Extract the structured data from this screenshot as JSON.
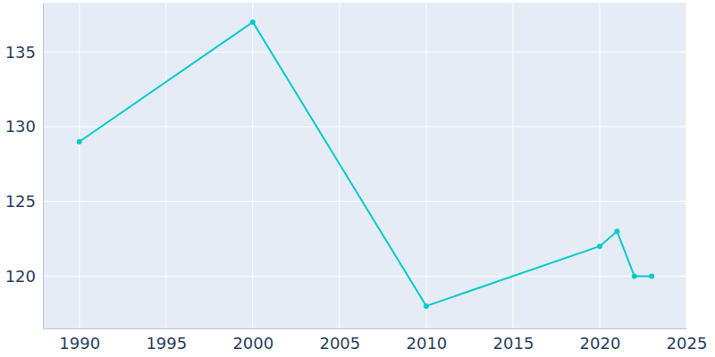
{
  "chart_data": {
    "type": "line",
    "x": [
      1990,
      2000,
      2010,
      2020,
      2021,
      2022,
      2023
    ],
    "values": [
      129,
      137,
      118,
      122,
      123,
      120,
      120
    ],
    "color": "#00cccc",
    "xlim": [
      1987.9,
      2025
    ],
    "ylim": [
      116.5,
      138.3
    ],
    "xticks": [
      1990,
      1995,
      2000,
      2005,
      2010,
      2015,
      2020,
      2025
    ],
    "yticks": [
      120,
      125,
      130,
      135
    ],
    "grid": true,
    "marker": "circle"
  }
}
